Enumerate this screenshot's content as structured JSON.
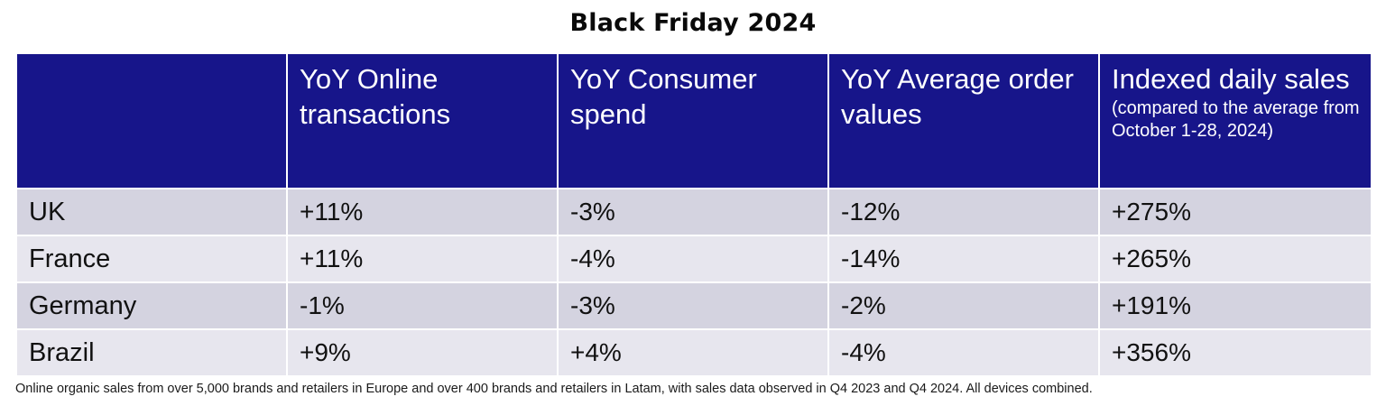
{
  "title": "Black Friday 2024",
  "chart_data": {
    "type": "table",
    "title": "Black Friday 2024",
    "columns": [
      {
        "label": "",
        "note": ""
      },
      {
        "label": "YoY Online transactions",
        "note": ""
      },
      {
        "label": "YoY Consumer spend",
        "note": ""
      },
      {
        "label": "YoY Average order values",
        "note": ""
      },
      {
        "label": "Indexed daily sales",
        "note": "(compared to the average from October 1-28, 2024)"
      }
    ],
    "rows": [
      {
        "country": "UK",
        "values": [
          "+11%",
          "-3%",
          "-12%",
          "+275%"
        ]
      },
      {
        "country": "France",
        "values": [
          "+11%",
          "-4%",
          "-14%",
          "+265%"
        ]
      },
      {
        "country": "Germany",
        "values": [
          "-1%",
          "-3%",
          "-2%",
          "+191%"
        ]
      },
      {
        "country": "Brazil",
        "values": [
          "+9%",
          "+4%",
          "-4%",
          "+356%"
        ]
      }
    ]
  },
  "footnote": "Online organic sales from over 5,000 brands and retailers in Europe and over 400 brands and retailers in Latam, with sales data observed in Q4 2023 and Q4 2024. All devices combined.",
  "colors": {
    "header_bg": "#17158a",
    "row_odd": "#d4d3e0",
    "row_even": "#e7e6ee"
  }
}
